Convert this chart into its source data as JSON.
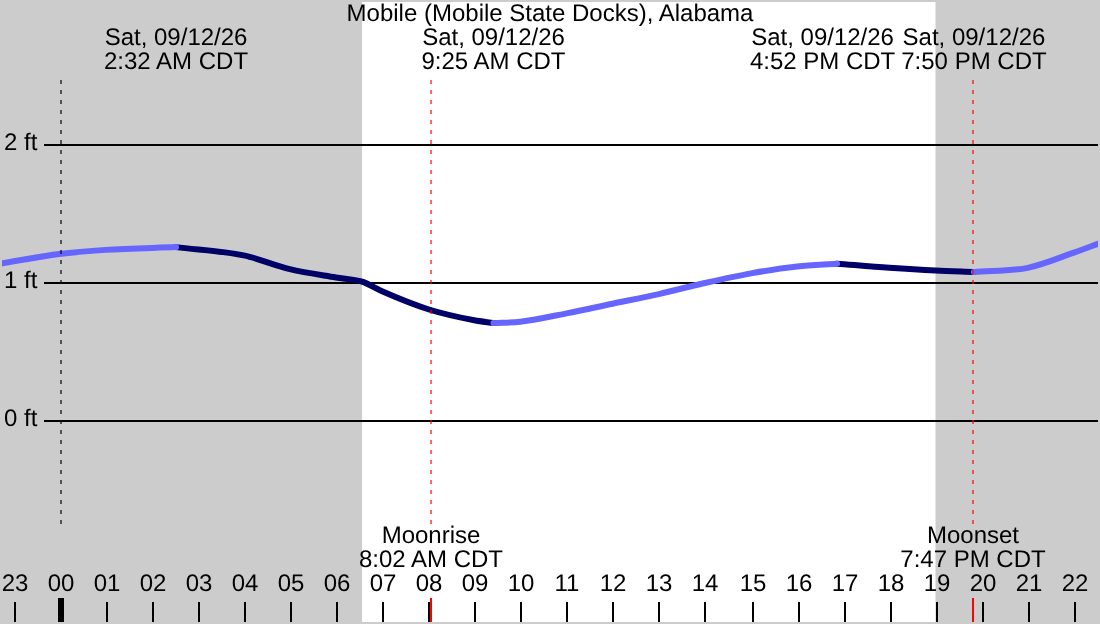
{
  "chart_data": {
    "type": "line",
    "title": "Mobile (Mobile State Docks), Alabama",
    "xlim": [
      "--09-11T22:43",
      "--09-12T22:34"
    ],
    "ylim": [
      -1.48,
      3.04
    ],
    "xticks": [
      {
        "value": "--09-11T23:00",
        "label": "23"
      },
      {
        "value": "--09-12T00:00",
        "label": "00"
      },
      {
        "value": "--09-12T01:00",
        "label": "01"
      },
      {
        "value": "--09-12T02:00",
        "label": "02"
      },
      {
        "value": "--09-12T03:00",
        "label": "03"
      },
      {
        "value": "--09-12T04:00",
        "label": "04"
      },
      {
        "value": "--09-12T05:00",
        "label": "05"
      },
      {
        "value": "--09-12T06:00",
        "label": "06"
      },
      {
        "value": "--09-12T07:00",
        "label": "07"
      },
      {
        "value": "--09-12T08:00",
        "label": "08"
      },
      {
        "value": "--09-12T09:00",
        "label": "09"
      },
      {
        "value": "--09-12T10:00",
        "label": "10"
      },
      {
        "value": "--09-12T11:00",
        "label": "11"
      },
      {
        "value": "--09-12T12:00",
        "label": "12"
      },
      {
        "value": "--09-12T13:00",
        "label": "13"
      },
      {
        "value": "--09-12T14:00",
        "label": "14"
      },
      {
        "value": "--09-12T15:00",
        "label": "15"
      },
      {
        "value": "--09-12T16:00",
        "label": "16"
      },
      {
        "value": "--09-12T17:00",
        "label": "17"
      },
      {
        "value": "--09-12T18:00",
        "label": "18"
      },
      {
        "value": "--09-12T19:00",
        "label": "19"
      },
      {
        "value": "--09-12T20:00",
        "label": "20"
      },
      {
        "value": "--09-12T21:00",
        "label": "21"
      },
      {
        "value": "--09-12T22:00",
        "label": "22"
      }
    ],
    "yticks": [
      {
        "value": 0,
        "label": "0 ft"
      },
      {
        "value": 1,
        "label": "1 ft"
      },
      {
        "value": 2,
        "label": "2 ft"
      }
    ],
    "grid": "y",
    "series": [
      {
        "color": "#6666ff",
        "x": [
          "--09-11T22:43",
          "--09-12T00:00",
          "--09-12T01:00",
          "--09-12T02:32",
          null,
          "--09-12T09:25",
          "--09-12T10:00",
          "--09-12T11:00",
          "--09-12T12:00",
          "--09-12T13:00",
          "--09-12T14:00",
          "--09-12T15:00",
          "--09-12T16:00",
          "--09-12T16:52",
          null,
          "--09-12T19:50",
          "--09-12T21:00",
          "--09-12T22:00",
          "--09-12T22:34"
        ],
        "values": [
          1.13,
          1.2,
          1.23,
          1.25,
          null,
          0.7,
          0.71,
          0.77,
          0.84,
          0.91,
          0.99,
          1.06,
          1.11,
          1.13,
          null,
          1.07,
          1.1,
          1.21,
          1.28
        ]
      },
      {
        "color": "#000066",
        "x": [
          "--09-12T02:32",
          "--09-12T04:00",
          "--09-12T05:00",
          "--09-12T06:00",
          "--09-12T06:34",
          "--09-12T07:00",
          "--09-12T08:00",
          "--09-12T09:00",
          "--09-12T09:25",
          null,
          "--09-12T16:52",
          "--09-12T18:00",
          "--09-12T19:00",
          "--09-12T19:50"
        ],
        "values": [
          1.25,
          1.19,
          1.09,
          1.03,
          1.0,
          0.93,
          0.8,
          0.72,
          0.7,
          null,
          1.13,
          1.1,
          1.08,
          1.07
        ]
      }
    ],
    "bands": [
      {
        "axis": "x",
        "from": "--09-11T22:43",
        "to": "--09-12T06:34",
        "color": "#cccccc"
      },
      {
        "axis": "x",
        "from": "--09-12T19:00",
        "to": "--09-12T22:34",
        "color": "#cccccc"
      }
    ],
    "ref_lines": [
      {
        "axis": "x",
        "value": "--09-12T00:00",
        "color": "#000000"
      },
      {
        "axis": "x",
        "value": "--09-12T08:02",
        "label": "Moonrise\n8:02 AM CDT",
        "color": "#ff0000"
      },
      {
        "axis": "x",
        "value": "--09-12T19:47",
        "label": "Moonset\n7:47 PM CDT",
        "color": "#ff0000"
      }
    ],
    "annotations": [
      "Sat, 09/12/26\n2:32 AM CDT",
      "Sat, 09/12/26\n9:25 AM CDT",
      "Sat, 09/12/26\n4:52 PM CDT",
      "Sat, 09/12/26\n7:50 PM CDT"
    ]
  }
}
